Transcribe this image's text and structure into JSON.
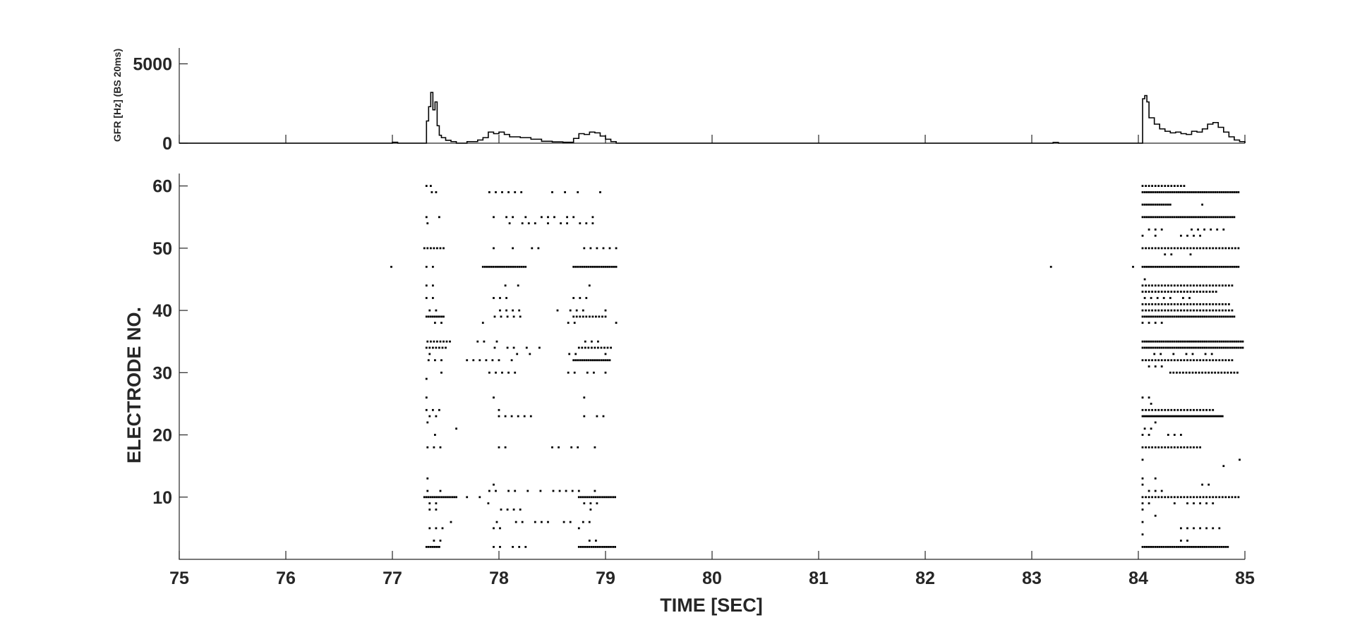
{
  "colors": {
    "axis": "#262626",
    "spikes": "#000000",
    "rate_line": "#000000",
    "background": "#ffffff"
  },
  "chart_data": [
    {
      "type": "line",
      "title": "",
      "xlabel": "",
      "ylabel": "GFR [Hz] (BS 20ms)",
      "xlim": [
        75,
        85
      ],
      "ylim": [
        0,
        6000
      ],
      "yticks": [
        0,
        5000
      ],
      "grid": false,
      "series": [
        {
          "x": [
            75,
            76.9,
            77.0,
            77.05,
            77.3,
            77.32,
            77.34,
            77.36,
            77.38,
            77.4,
            77.42,
            77.44,
            77.46,
            77.5,
            77.55,
            77.6,
            77.7,
            77.8,
            77.85,
            77.9,
            77.95,
            78.0,
            78.05,
            78.1,
            78.2,
            78.3,
            78.4,
            78.5,
            78.6,
            78.7,
            78.75,
            78.8,
            78.85,
            78.9,
            78.95,
            79.0,
            79.05,
            79.1,
            79.15,
            83.1,
            83.2,
            83.25,
            84.0,
            84.04,
            84.06,
            84.08,
            84.1,
            84.15,
            84.2,
            84.25,
            84.3,
            84.35,
            84.4,
            84.45,
            84.5,
            84.55,
            84.6,
            84.65,
            84.7,
            84.75,
            84.8,
            84.85,
            84.9,
            84.95,
            85.0
          ],
          "y": [
            0,
            0,
            60,
            0,
            0,
            1400,
            2300,
            3200,
            2100,
            2600,
            1100,
            500,
            350,
            180,
            100,
            0,
            100,
            200,
            350,
            700,
            600,
            700,
            550,
            400,
            350,
            250,
            120,
            80,
            60,
            300,
            600,
            550,
            700,
            650,
            450,
            250,
            100,
            0,
            0,
            0,
            50,
            0,
            0,
            2800,
            3000,
            2600,
            1600,
            1200,
            900,
            750,
            650,
            700,
            600,
            550,
            750,
            700,
            900,
            1200,
            1300,
            1000,
            700,
            400,
            200,
            100,
            0
          ]
        }
      ]
    },
    {
      "type": "scatter",
      "title": "",
      "xlabel": "TIME [SEC]",
      "ylabel": "ELECTRODE NO.",
      "xlim": [
        75,
        85
      ],
      "ylim": [
        0,
        62
      ],
      "xticks": [
        75,
        76,
        77,
        78,
        79,
        80,
        81,
        82,
        83,
        84,
        85
      ],
      "yticks": [
        10,
        20,
        30,
        40,
        50,
        60
      ],
      "grid": false,
      "bursts": [
        {
          "start": 77.3,
          "end": 79.15,
          "rows": [
            [
              60,
              77.32,
              77.42,
              0.04,
              77.9,
              0.03
            ],
            [
              59,
              77.33,
              77.42,
              0.04,
              77.85,
              78.3,
              78.5,
              78.75,
              78.95
            ],
            [
              55,
              77.32,
              77.45,
              0.04,
              77.95,
              78.25,
              78.4,
              78.8,
              78.88
            ],
            [
              54,
              77.33,
              77.35,
              78.1,
              78.9
            ],
            [
              50,
              77.3,
              77.5,
              0.03,
              77.95,
              78.4,
              78.8,
              79.1
            ],
            [
              47,
              77.32,
              77.38,
              77.85,
              78.25,
              0.02,
              78.7,
              79.1,
              0.02
            ],
            [
              44,
              77.32,
              77.42,
              78.0,
              78.2,
              78.85
            ],
            [
              42,
              77.32,
              77.4,
              77.95,
              78.1,
              78.7,
              78.88
            ],
            [
              40,
              77.35,
              77.45,
              77.95,
              78.2,
              78.55,
              78.8,
              79.0
            ],
            [
              39,
              77.32,
              77.48,
              0.02,
              77.9,
              78.3,
              78.7,
              79.0,
              0.03
            ],
            [
              38,
              77.4,
              77.47,
              77.85,
              78.0,
              78.65,
              78.75,
              79.1
            ],
            [
              35,
              77.33,
              77.55,
              0.03,
              77.8,
              78.2,
              78.75,
              78.95
            ],
            [
              34,
              77.32,
              77.5,
              0.03,
              77.9,
              78.4,
              78.75,
              79.05,
              0.03
            ],
            [
              33,
              77.35,
              77.45,
              78.05,
              78.3,
              78.6,
              78.8,
              79.0
            ],
            [
              32,
              77.34,
              77.48,
              77.7,
              78.25,
              78.7,
              79.05,
              0.02
            ],
            [
              30,
              77.4,
              77.5,
              77.85,
              78.2,
              78.65,
              78.9,
              79.0
            ],
            [
              29,
              77.32,
              77.36
            ],
            [
              26,
              77.32,
              77.34,
              77.95,
              78.0,
              78.8
            ],
            [
              24,
              77.32,
              77.45,
              78.0,
              78.05
            ],
            [
              23,
              77.35,
              77.45,
              78.0,
              78.3,
              78.8,
              79.0
            ],
            [
              22,
              77.33,
              77.38
            ],
            [
              21,
              77.6,
              77.6
            ],
            [
              20,
              77.4,
              77.4
            ],
            [
              18,
              77.33,
              77.5,
              78.0,
              78.1,
              78.5,
              78.75,
              78.9
            ],
            [
              13,
              77.33,
              77.38
            ],
            [
              12,
              77.95,
              77.95
            ],
            [
              11,
              77.33,
              77.52,
              77.85,
              78.8,
              78.9
            ],
            [
              10,
              77.3,
              77.6,
              0.02,
              77.7,
              77.85,
              78.3,
              0.015,
              78.75,
              79.1,
              0.02
            ],
            [
              9,
              77.35,
              77.45,
              77.9,
              78.05,
              78.8,
              78.95
            ],
            [
              8,
              77.35,
              77.42,
              77.9,
              78.2,
              78.8,
              78.95
            ],
            [
              6,
              77.55,
              77.55,
              77.98,
              78.5,
              78.55,
              78.8,
              78.85
            ],
            [
              5,
              77.35,
              77.5,
              77.95,
              78.05,
              78.75,
              78.9
            ],
            [
              3,
              77.33,
              77.45,
              78.85,
              78.95
            ],
            [
              2,
              77.32,
              77.45,
              0.02,
              77.95,
              78.25,
              78.75,
              79.1,
              0.02
            ]
          ]
        },
        {
          "start": 84.0,
          "end": 85.0,
          "rows": [
            [
              60,
              84.04,
              84.45,
              0.03
            ],
            [
              59,
              84.04,
              84.95,
              0.02
            ],
            [
              57,
              84.04,
              84.3,
              0.02,
              84.6,
              84.6
            ],
            [
              55,
              84.04,
              84.9,
              0.02
            ],
            [
              53,
              84.1,
              84.3,
              84.5,
              84.8
            ],
            [
              52,
              84.04,
              84.2,
              84.4,
              84.6
            ],
            [
              50,
              84.04,
              84.95,
              0.03
            ],
            [
              49,
              84.25,
              84.5
            ],
            [
              47,
              84.04,
              84.95,
              0.02,
              83.95,
              83.95
            ],
            [
              45,
              84.06,
              84.08
            ],
            [
              44,
              84.04,
              84.9,
              0.03
            ],
            [
              43,
              84.04,
              84.75,
              0.03
            ],
            [
              42,
              84.06,
              84.7
            ],
            [
              41,
              84.04,
              84.85,
              0.03
            ],
            [
              40,
              84.04,
              84.9,
              0.03
            ],
            [
              39,
              84.04,
              84.9,
              0.02
            ],
            [
              38,
              84.04,
              84.25
            ],
            [
              35,
              84.04,
              84.98,
              0.02
            ],
            [
              34,
              84.04,
              84.98,
              0.02
            ],
            [
              33,
              84.15,
              84.7
            ],
            [
              32,
              84.04,
              84.9,
              0.03
            ],
            [
              31,
              84.04,
              84.25
            ],
            [
              30,
              84.3,
              84.95,
              0.03
            ],
            [
              28,
              84.12,
              84.2
            ],
            [
              26,
              84.04,
              84.15
            ],
            [
              25,
              84.06,
              84.12
            ],
            [
              24,
              84.04,
              84.7,
              0.03
            ],
            [
              23,
              84.04,
              84.8,
              0.015
            ],
            [
              22,
              84.04,
              84.2
            ],
            [
              21,
              84.06,
              84.12
            ],
            [
              20,
              84.04,
              84.45
            ],
            [
              18,
              84.04,
              84.6,
              0.03
            ],
            [
              16,
              84.04,
              84.06,
              84.95,
              84.95
            ],
            [
              15,
              84.8,
              84.85
            ],
            [
              13,
              84.04,
              84.2
            ],
            [
              12,
              84.04,
              84.1,
              84.6,
              84.7
            ],
            [
              11,
              84.1,
              84.3
            ],
            [
              10,
              84.04,
              84.95,
              0.03
            ],
            [
              9,
              84.04,
              84.8
            ],
            [
              8,
              84.04,
              84.2
            ],
            [
              7,
              84.1,
              84.25
            ],
            [
              6,
              84.04,
              84.1
            ],
            [
              5,
              84.4,
              84.8
            ],
            [
              4,
              84.04,
              84.06
            ],
            [
              3,
              84.4,
              84.5
            ],
            [
              2,
              84.04,
              84.85,
              0.02
            ]
          ]
        }
      ],
      "isolated_spikes": [
        [
          76.99,
          47
        ],
        [
          83.18,
          47
        ]
      ]
    }
  ]
}
